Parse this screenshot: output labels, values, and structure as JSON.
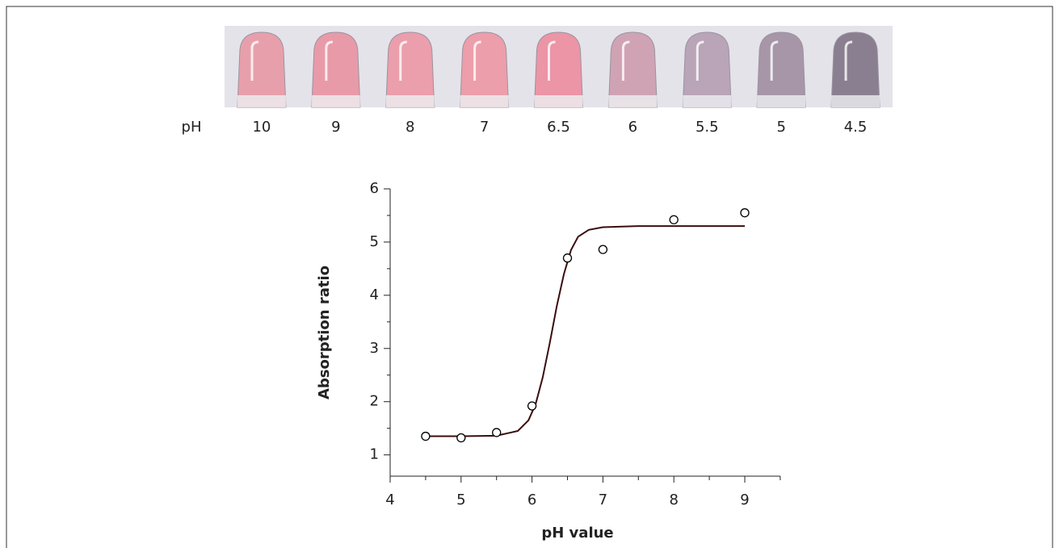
{
  "tube_strip": {
    "label": "pH",
    "ph_values": [
      10,
      9,
      8,
      7,
      6.5,
      6,
      5.5,
      5,
      4.5
    ],
    "tube_colors": [
      "#e7a0ab",
      "#e99aa8",
      "#eb9eab",
      "#ec9eaa",
      "#eb95a6",
      "#cfa3b3",
      "#b9a4b8",
      "#a696a8",
      "#8a7f90"
    ]
  },
  "chart_data": {
    "type": "scatter",
    "x_label": "pH value",
    "y_label": "Absorption ratio",
    "xlim": [
      4,
      9.5
    ],
    "xticks": [
      4,
      5,
      6,
      7,
      8,
      9
    ],
    "xminorticks": [
      4.5,
      5.5,
      6.5,
      7.5,
      8.5,
      9.5
    ],
    "ylim": [
      0.6,
      6
    ],
    "yticks": [
      1,
      2,
      3,
      4,
      5,
      6
    ],
    "yminorticks": [
      1.5,
      2.5,
      3.5,
      4.5,
      5.5
    ],
    "series": [
      {
        "type": "scatter",
        "color": "#000000",
        "x": [
          4.5,
          5,
          5.5,
          6,
          6.5,
          7,
          8,
          9
        ],
        "values": [
          1.35,
          1.32,
          1.42,
          1.92,
          4.7,
          4.86,
          5.42,
          5.55
        ]
      },
      {
        "type": "line",
        "color": "#3a0d0d",
        "x": [
          4.5,
          5,
          5.5,
          5.8,
          5.95,
          6.05,
          6.15,
          6.25,
          6.35,
          6.45,
          6.55,
          6.65,
          6.8,
          7,
          7.5,
          8,
          9
        ],
        "values": [
          1.35,
          1.35,
          1.36,
          1.45,
          1.65,
          1.95,
          2.45,
          3.1,
          3.8,
          4.4,
          4.85,
          5.1,
          5.23,
          5.28,
          5.3,
          5.3,
          5.3
        ]
      }
    ]
  }
}
